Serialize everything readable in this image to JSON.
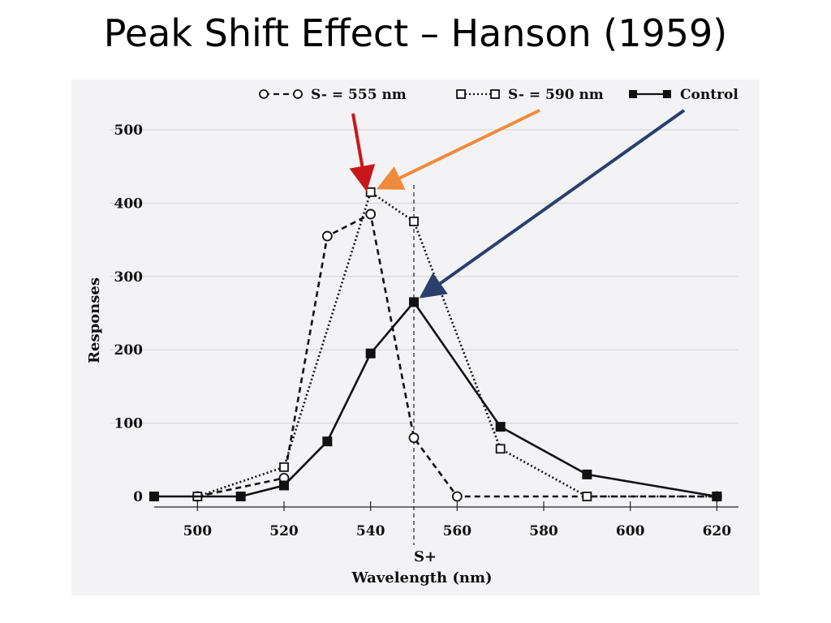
{
  "slide": {
    "title": "Peak Shift Effect – Hanson (1959)"
  },
  "chart_data": {
    "type": "line",
    "xlabel": "Wavelength (nm)",
    "ylabel": "Responses",
    "xlim": [
      490,
      625
    ],
    "ylim": [
      0,
      500
    ],
    "x_ticks": [
      500,
      520,
      540,
      560,
      580,
      600,
      620
    ],
    "y_ticks": [
      0,
      100,
      200,
      300,
      400,
      500
    ],
    "splus": {
      "x": 550,
      "label": "S+"
    },
    "legend_position": "top",
    "series": [
      {
        "name": "S- = 555 nm",
        "marker": "circle",
        "dash": "dashed",
        "points": [
          [
            500,
            0
          ],
          [
            520,
            25
          ],
          [
            530,
            355
          ],
          [
            540,
            385
          ],
          [
            550,
            80
          ],
          [
            560,
            0
          ],
          [
            620,
            0
          ]
        ]
      },
      {
        "name": "S- = 590 nm",
        "marker": "square",
        "dash": "dotted",
        "points": [
          [
            500,
            0
          ],
          [
            520,
            40
          ],
          [
            540,
            415
          ],
          [
            550,
            375
          ],
          [
            570,
            65
          ],
          [
            590,
            0
          ],
          [
            620,
            0
          ]
        ]
      },
      {
        "name": "Control",
        "marker": "filled-square",
        "dash": "solid",
        "points": [
          [
            490,
            0
          ],
          [
            510,
            0
          ],
          [
            520,
            15
          ],
          [
            530,
            75
          ],
          [
            540,
            195
          ],
          [
            550,
            265
          ],
          [
            570,
            95
          ],
          [
            590,
            30
          ],
          [
            620,
            0
          ]
        ]
      }
    ],
    "arrows": [
      {
        "color": "#c8171b",
        "target": "S- = 555 nm peak"
      },
      {
        "color": "#f08a3c",
        "target": "S- = 590 nm peak"
      },
      {
        "color": "#2b3f6d",
        "target": "Control peak"
      }
    ]
  }
}
